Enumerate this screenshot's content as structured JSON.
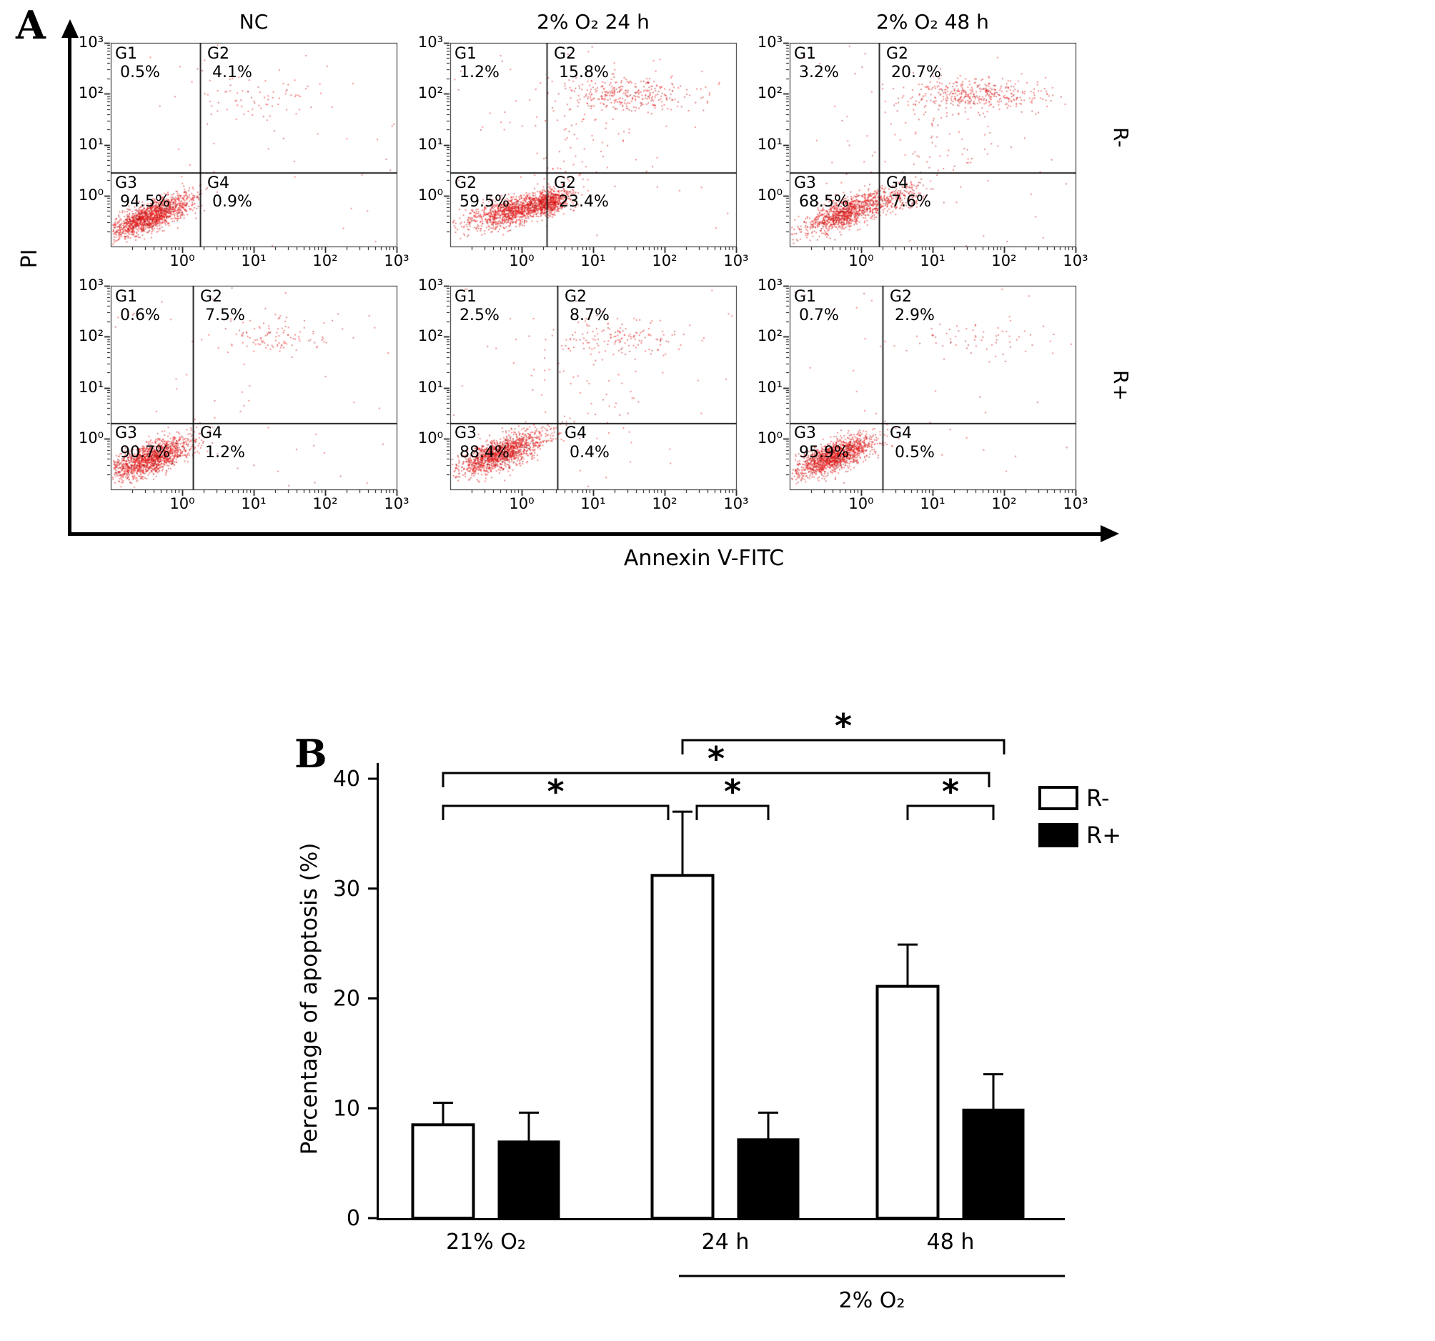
{
  "figure": {
    "panel_a_label": "A",
    "panel_b_label": "B"
  },
  "chart_data": [
    {
      "type": "scatter",
      "name": "flow-cytometry-apoptosis",
      "xlabel": "Annexin V-FITC",
      "ylabel": "PI",
      "xscale": "log",
      "yscale": "log",
      "decades": 4,
      "ticks": [
        "10⁰",
        "10¹",
        "10²",
        "10³"
      ],
      "conditions": [
        "NC",
        "2% O₂ 24 h",
        "2% O₂ 48 h"
      ],
      "groups": [
        "R-",
        "R+"
      ],
      "dot_color": "#ee1c1c",
      "plots": [
        {
          "row": 0,
          "col": 0,
          "group": "R-",
          "condition": "NC",
          "quadrants": [
            {
              "label": "G1",
              "pct": "0.5%"
            },
            {
              "label": "G2",
              "pct": "4.1%"
            },
            {
              "label": "G3",
              "pct": "94.5%"
            },
            {
              "label": "G4",
              "pct": "0.9%"
            }
          ],
          "gates": {
            "x": 1.25,
            "y": 1.45
          },
          "clusters": [
            {
              "n": 1500,
              "cx": 0.55,
              "cy": 0.6,
              "sx": 0.3,
              "sy": 0.14,
              "k": 0.55
            },
            {
              "n": 70,
              "cx": 2.15,
              "cy": 2.95,
              "sx": 0.5,
              "sy": 0.22,
              "k": 0
            }
          ],
          "sparse": 45
        },
        {
          "row": 0,
          "col": 1,
          "group": "R-",
          "condition": "2% O₂ 24 h",
          "quadrants": [
            {
              "label": "G1",
              "pct": "1.2%"
            },
            {
              "label": "G2",
              "pct": "15.8%"
            },
            {
              "label": "G2",
              "pct": "59.5%"
            },
            {
              "label": "G2",
              "pct": "23.4%"
            }
          ],
          "gates": {
            "x": 1.35,
            "y": 1.45
          },
          "clusters": [
            {
              "n": 1150,
              "cx": 0.9,
              "cy": 0.72,
              "sx": 0.34,
              "sy": 0.13,
              "k": 0.35
            },
            {
              "n": 500,
              "cx": 1.38,
              "cy": 0.88,
              "sx": 0.14,
              "sy": 0.12,
              "k": 0.35
            },
            {
              "n": 330,
              "cx": 2.45,
              "cy": 3.0,
              "sx": 0.45,
              "sy": 0.17,
              "k": 0
            },
            {
              "n": 70,
              "cx": 1.8,
              "cy": 2.1,
              "sx": 0.45,
              "sy": 0.55,
              "k": 0
            }
          ],
          "sparse": 55
        },
        {
          "row": 0,
          "col": 2,
          "group": "R-",
          "condition": "2% O₂ 48 h",
          "quadrants": [
            {
              "label": "G1",
              "pct": "3.2%"
            },
            {
              "label": "G2",
              "pct": "20.7%"
            },
            {
              "label": "G3",
              "pct": "68.5%"
            },
            {
              "label": "G4",
              "pct": "7.6%"
            }
          ],
          "gates": {
            "x": 1.25,
            "y": 1.45
          },
          "clusters": [
            {
              "n": 1050,
              "cx": 0.78,
              "cy": 0.68,
              "sx": 0.3,
              "sy": 0.14,
              "k": 0.5
            },
            {
              "n": 200,
              "cx": 1.5,
              "cy": 0.95,
              "sx": 0.22,
              "sy": 0.14,
              "k": 0.4
            },
            {
              "n": 400,
              "cx": 2.6,
              "cy": 3.0,
              "sx": 0.5,
              "sy": 0.15,
              "k": 0
            },
            {
              "n": 80,
              "cx": 1.95,
              "cy": 2.25,
              "sx": 0.5,
              "sy": 0.5,
              "k": 0
            }
          ],
          "sparse": 60
        },
        {
          "row": 1,
          "col": 0,
          "group": "R+",
          "condition": "NC",
          "quadrants": [
            {
              "label": "G1",
              "pct": "0.6%"
            },
            {
              "label": "G2",
              "pct": "7.5%"
            },
            {
              "label": "G3",
              "pct": "90.7%"
            },
            {
              "label": "G4",
              "pct": "1.2%"
            }
          ],
          "gates": {
            "x": 1.15,
            "y": 1.3
          },
          "clusters": [
            {
              "n": 1450,
              "cx": 0.55,
              "cy": 0.62,
              "sx": 0.3,
              "sy": 0.15,
              "k": 0.5
            },
            {
              "n": 110,
              "cx": 2.3,
              "cy": 3.0,
              "sx": 0.42,
              "sy": 0.2,
              "k": 0
            }
          ],
          "sparse": 50
        },
        {
          "row": 1,
          "col": 1,
          "group": "R+",
          "condition": "2% O₂ 24 h",
          "quadrants": [
            {
              "label": "G1",
              "pct": "2.5%"
            },
            {
              "label": "G2",
              "pct": "8.7%"
            },
            {
              "label": "G3",
              "pct": "88.4%"
            },
            {
              "label": "G4",
              "pct": "0.4%"
            }
          ],
          "gates": {
            "x": 1.5,
            "y": 1.3
          },
          "clusters": [
            {
              "n": 1400,
              "cx": 0.7,
              "cy": 0.72,
              "sx": 0.3,
              "sy": 0.15,
              "k": 0.5
            },
            {
              "n": 150,
              "cx": 2.35,
              "cy": 3.0,
              "sx": 0.42,
              "sy": 0.2,
              "k": 0
            },
            {
              "n": 45,
              "cx": 1.6,
              "cy": 1.9,
              "sx": 0.5,
              "sy": 0.6,
              "k": 0
            }
          ],
          "sparse": 50
        },
        {
          "row": 1,
          "col": 2,
          "group": "R+",
          "condition": "2% O₂ 48 h",
          "quadrants": [
            {
              "label": "G1",
              "pct": "0.7%"
            },
            {
              "label": "G2",
              "pct": "2.9%"
            },
            {
              "label": "G3",
              "pct": "95.9%"
            },
            {
              "label": "G4",
              "pct": "0.5%"
            }
          ],
          "gates": {
            "x": 1.3,
            "y": 1.3
          },
          "clusters": [
            {
              "n": 1450,
              "cx": 0.6,
              "cy": 0.65,
              "sx": 0.28,
              "sy": 0.14,
              "k": 0.5
            },
            {
              "n": 60,
              "cx": 2.5,
              "cy": 2.95,
              "sx": 0.45,
              "sy": 0.17,
              "k": 0
            }
          ],
          "sparse": 40
        }
      ]
    },
    {
      "type": "bar",
      "panel": "B",
      "title": "",
      "xlabel": "",
      "ylabel": "Percentage of apoptosis (%)",
      "ylim": [
        0,
        40
      ],
      "yticks": [
        0,
        10,
        20,
        30,
        40
      ],
      "categories": [
        "21% O₂",
        "24 h",
        "48 h"
      ],
      "group_bracket": {
        "label": "2% O₂",
        "from_category": 1,
        "to_category": 2
      },
      "series": [
        {
          "name": "R-",
          "fill": "#ffffff",
          "values": [
            8.5,
            31.2,
            21.1
          ],
          "errors": [
            2.0,
            5.8,
            3.8
          ]
        },
        {
          "name": "R+",
          "fill": "#000000",
          "values": [
            7.0,
            7.2,
            9.9
          ],
          "errors": [
            2.6,
            2.4,
            3.2
          ]
        }
      ],
      "significance": [
        {
          "from": [
            1,
            0
          ],
          "to": [
            2,
            1
          ],
          "level": 3,
          "label": "*"
        },
        {
          "from": [
            0,
            0
          ],
          "to": [
            2,
            1
          ],
          "level": 2,
          "label": "*"
        },
        {
          "from": [
            0,
            0
          ],
          "to": [
            1,
            0
          ],
          "level": 1,
          "label": "*"
        },
        {
          "from": [
            1,
            0
          ],
          "to": [
            1,
            1
          ],
          "level": 1,
          "label": "*"
        },
        {
          "from": [
            2,
            0
          ],
          "to": [
            2,
            1
          ],
          "level": 1,
          "label": "*"
        }
      ],
      "legend": {
        "position": "top-right",
        "items": [
          {
            "label": "R-",
            "fill": "#ffffff"
          },
          {
            "label": "R+",
            "fill": "#000000"
          }
        ]
      }
    }
  ]
}
